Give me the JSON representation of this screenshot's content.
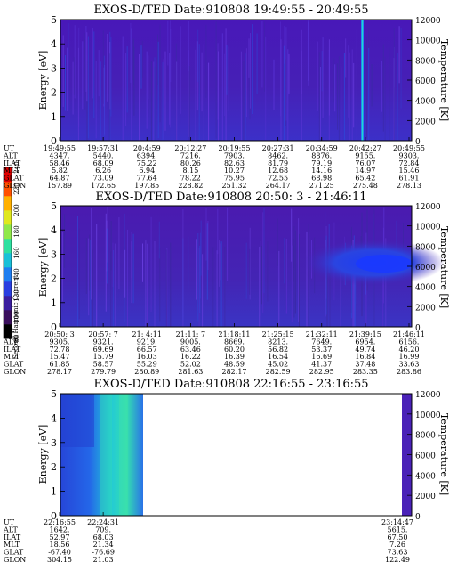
{
  "colorbar": {
    "label": "Second Harmonic Current",
    "ticks": [
      "80",
      "100",
      "120",
      "140",
      "160",
      "180",
      "200",
      "220",
      "240"
    ],
    "colors": [
      "#000000",
      "#3a0f5c",
      "#3b1e9f",
      "#2a3ee0",
      "#1f7ef0",
      "#19c0d8",
      "#2ee0a0",
      "#8fe84a",
      "#e0e81e",
      "#ffb000",
      "#ff5000",
      "#e00000"
    ]
  },
  "row_labels": [
    "UT",
    "ALT",
    "ILAT",
    "MLT",
    "GLAT",
    "GLON"
  ],
  "chart_data": [
    {
      "type": "heatmap",
      "title": "EXOS-D/TED   Date:910808   19:49:55 - 20:49:55",
      "ylabel": "Energy [eV]",
      "y2label": "Temperature [K]",
      "ylim": [
        0,
        5
      ],
      "y2lim": [
        0,
        12000
      ],
      "yticks": [
        "0",
        "1",
        "2",
        "3",
        "4",
        "5"
      ],
      "y2ticks": [
        "0",
        "2000",
        "4000",
        "6000",
        "8000",
        "10000",
        "12000"
      ],
      "columns": [
        [
          "19:49:55",
          "4347.",
          "58.46",
          "5.82",
          "64.87",
          "157.89"
        ],
        [
          "19:57:31",
          "5440.",
          "68.09",
          "6.26",
          "73.09",
          "172.65"
        ],
        [
          "20:4:59",
          "6394.",
          "75.22",
          "6.94",
          "77.64",
          "197.85"
        ],
        [
          "20:12:27",
          "7216.",
          "80.26",
          "8.15",
          "78.22",
          "228.82"
        ],
        [
          "20:19:55",
          "7903.",
          "82.63",
          "10.27",
          "75.95",
          "251.32"
        ],
        [
          "20:27:31",
          "8462.",
          "81.79",
          "12.68",
          "72.55",
          "264.17"
        ],
        [
          "20:34:59",
          "8876.",
          "79.19",
          "14.16",
          "68.98",
          "271.25"
        ],
        [
          "20:42:27",
          "9155.",
          "76.07",
          "14.97",
          "65.42",
          "275.48"
        ],
        [
          "20:49:55",
          "9303.",
          "72.84",
          "15.46",
          "61.91",
          "278.13"
        ]
      ]
    },
    {
      "type": "heatmap",
      "title": "EXOS-D/TED   Date:910808  20:50: 3 - 21:46:11",
      "ylabel": "Energy [eV]",
      "y2label": "Temperature [K]",
      "ylim": [
        0,
        5
      ],
      "y2lim": [
        0,
        12000
      ],
      "yticks": [
        "0",
        "1",
        "2",
        "3",
        "4",
        "5"
      ],
      "y2ticks": [
        "0",
        "2000",
        "4000",
        "6000",
        "8000",
        "10000",
        "12000"
      ],
      "columns": [
        [
          "20:50: 3",
          "9305.",
          "72.78",
          "15.47",
          "61.85",
          "278.17"
        ],
        [
          "20:57: 7",
          "9321.",
          "69.69",
          "15.79",
          "58.57",
          "279.79"
        ],
        [
          "21: 4:11",
          "9219.",
          "66.57",
          "16.03",
          "55.29",
          "280.89"
        ],
        [
          "21:11: 7",
          "9005.",
          "63.46",
          "16.22",
          "52.02",
          "281.63"
        ],
        [
          "21:18:11",
          "8669.",
          "60.20",
          "16.39",
          "48.59",
          "282.17"
        ],
        [
          "21:25:15",
          "8213.",
          "56.82",
          "16.54",
          "45.02",
          "282.59"
        ],
        [
          "21:32:11",
          "7649.",
          "53.37",
          "16.69",
          "41.37",
          "282.95"
        ],
        [
          "21:39:15",
          "6954.",
          "49.74",
          "16.84",
          "37.48",
          "283.35"
        ],
        [
          "21:46:11",
          "6156.",
          "46.20",
          "16.99",
          "33.63",
          "283.86"
        ]
      ]
    },
    {
      "type": "heatmap",
      "title": "EXOS-D/TED   Date:910808  22:16:55 - 23:16:55",
      "ylabel": "Energy [eV]",
      "y2label": "Temperature [K]",
      "ylim": [
        0,
        5
      ],
      "y2lim": [
        0,
        12000
      ],
      "yticks": [
        "0",
        "1",
        "2",
        "3",
        "4",
        "5"
      ],
      "y2ticks": [
        "0",
        "2000",
        "4000",
        "6000",
        "8000",
        "10000",
        "12000"
      ],
      "columns": [
        [
          "22:16:55",
          "1642.",
          "52.97",
          "18.56",
          "-67.40",
          "304.15"
        ],
        [
          "22:24:31",
          "709.",
          "68.03",
          "21.34",
          "-76.69",
          "21.03"
        ]
      ],
      "end_column": [
        "23:14:47",
        "5615.",
        "67.50",
        "7.26",
        "73.63",
        "122.49"
      ]
    }
  ]
}
